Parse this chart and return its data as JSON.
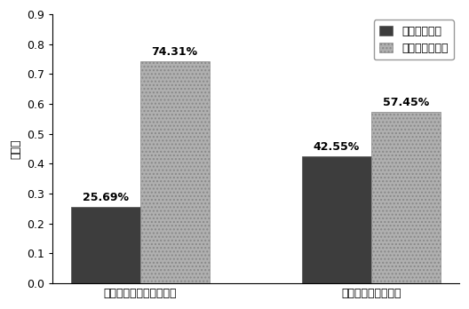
{
  "categories": [
    "自行车方式出行选择优先",
    "活动钉模式选择优先"
  ],
  "series": [
    {
      "name": "自行车使用者",
      "values": [
        0.2569,
        0.4255
      ],
      "color": "#3d3d3d",
      "hatch": ""
    },
    {
      "name": "非自行车使用者",
      "values": [
        0.7431,
        0.5745
      ],
      "color": "#b0b0b0",
      "hatch": "...."
    }
  ],
  "labels": [
    [
      "25.69%",
      "42.55%"
    ],
    [
      "74.31%",
      "57.45%"
    ]
  ],
  "ylabel": "百分比",
  "ylim": [
    0,
    0.9
  ],
  "yticks": [
    0,
    0.1,
    0.2,
    0.3,
    0.4,
    0.5,
    0.6,
    0.7,
    0.8,
    0.9
  ],
  "bar_width": 0.3,
  "legend_loc": "upper right",
  "background_color": "#ffffff",
  "label_fontsize": 9,
  "axis_fontsize": 9,
  "legend_fontsize": 9
}
